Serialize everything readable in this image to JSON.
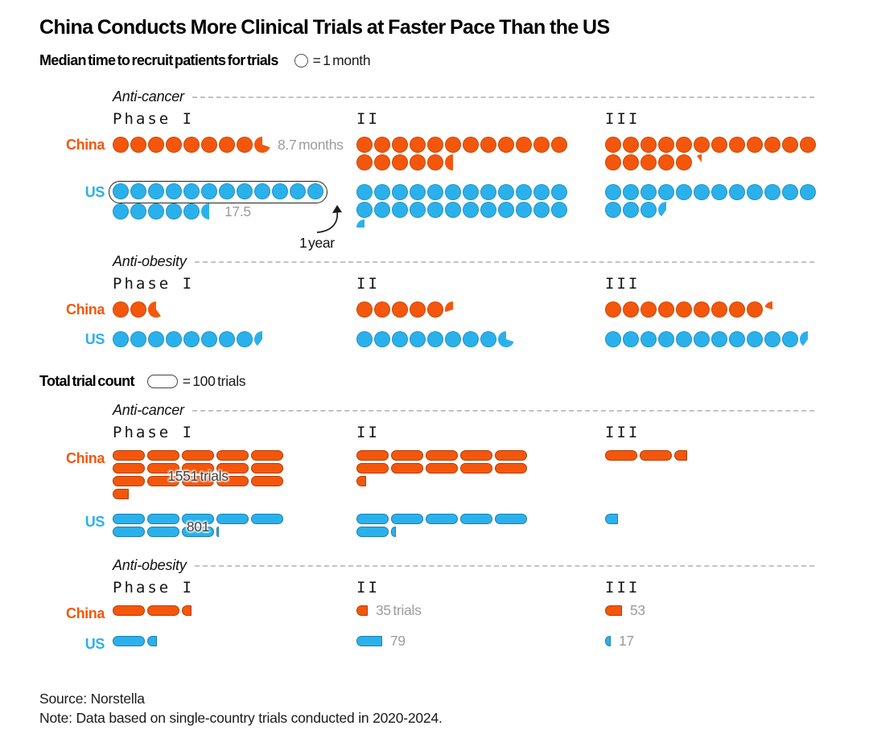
{
  "chart_data": {
    "type": "pictogram",
    "title": "China Conducts More Clinical Trials at Faster Pace Than the US",
    "colors": {
      "china": "#f4570b",
      "us": "#2ab1ec",
      "annotation_gray": "#9c9c9c"
    },
    "row_labels": {
      "china": "China",
      "us": "US"
    },
    "sections": [
      {
        "id": "median_recruit_time",
        "heading": "Median time to recruit patients for trials",
        "legend": {
          "symbol": "circle-icon",
          "label": "= 1 month"
        },
        "symbol_value": 1,
        "unit": "months",
        "wrap_per_row": 12,
        "groups": [
          {
            "label": "Anti-cancer",
            "phases": [
              {
                "label": "Phase I",
                "china": {
                  "value": 8.7,
                  "annotation": "8.7 months",
                  "annotation_placement": "inline"
                },
                "us": {
                  "value": 17.5,
                  "annotation": "17.5",
                  "annotation_placement": "inline",
                  "box_first_row": true,
                  "callout": "1 year"
                }
              },
              {
                "label": "II",
                "china": {
                  "value": 17.5
                },
                "us": {
                  "value": 24.25
                }
              },
              {
                "label": "III",
                "china": {
                  "value": 17.1
                },
                "us": {
                  "value": 15.4
                }
              }
            ]
          },
          {
            "label": "Anti-obesity",
            "phases": [
              {
                "label": "Phase I",
                "china": {
                  "value": 2.6
                },
                "us": {
                  "value": 8.4
                }
              },
              {
                "label": "II",
                "china": {
                  "value": 5.3
                },
                "us": {
                  "value": 8.7
                }
              },
              {
                "label": "III",
                "china": {
                  "value": 9.2
                },
                "us": {
                  "value": 11.4
                }
              }
            ]
          }
        ]
      },
      {
        "id": "total_trial_count",
        "heading": "Total trial count",
        "legend": {
          "symbol": "pill-icon",
          "label": "= 100 trials"
        },
        "symbol_value": 100,
        "unit": "trials",
        "wrap_per_row": 5,
        "groups": [
          {
            "label": "Anti-cancer",
            "phases": [
              {
                "label": "Phase I",
                "china": {
                  "value": 1551,
                  "annotation": "1551 trials",
                  "annotation_placement": "overlay"
                },
                "us": {
                  "value": 801,
                  "annotation": "801",
                  "annotation_placement": "overlay"
                }
              },
              {
                "label": "II",
                "china": {
                  "value": 1030
                },
                "us": {
                  "value": 615
                }
              },
              {
                "label": "III",
                "china": {
                  "value": 240
                },
                "us": {
                  "value": 40
                }
              }
            ]
          },
          {
            "label": "Anti-obesity",
            "phases": [
              {
                "label": "Phase I",
                "china": {
                  "value": 230
                },
                "us": {
                  "value": 130
                }
              },
              {
                "label": "II",
                "china": {
                  "value": 35,
                  "annotation": "35 trials",
                  "annotation_placement": "inline"
                },
                "us": {
                  "value": 79,
                  "annotation": "79",
                  "annotation_placement": "inline"
                }
              },
              {
                "label": "III",
                "china": {
                  "value": 53,
                  "annotation": "53",
                  "annotation_placement": "inline"
                },
                "us": {
                  "value": 17,
                  "annotation": "17",
                  "annotation_placement": "inline"
                }
              }
            ]
          }
        ]
      }
    ],
    "footer": {
      "source": "Source: Norstella",
      "note": "Note: Data based on single-country trials conducted in 2020-2024."
    }
  }
}
